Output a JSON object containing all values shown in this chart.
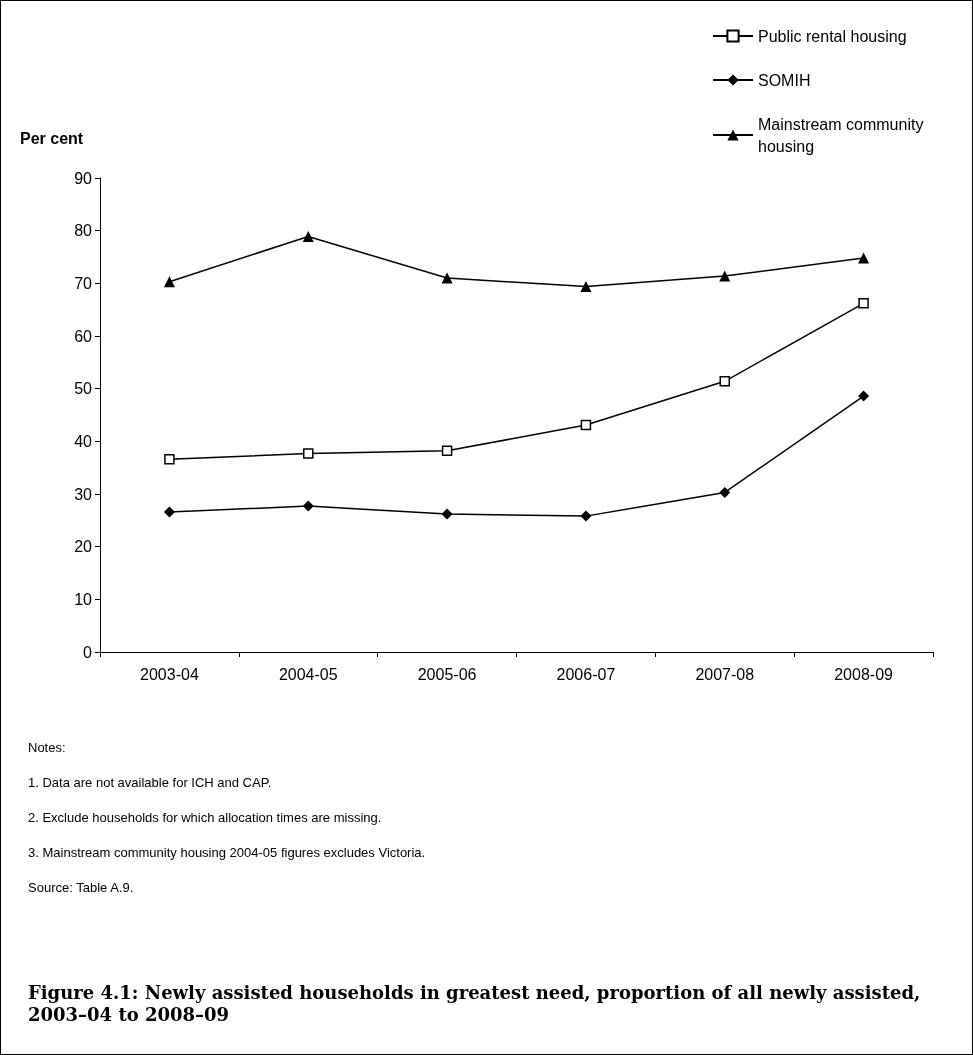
{
  "chart_data": {
    "type": "line",
    "title": "Figure 4.1: Newly assisted households in greatest need, proportion of all newly assisted, 2003–04 to 2008–09",
    "ylabel": "Per cent",
    "categories": [
      "2003-04",
      "2004-05",
      "2005-06",
      "2006-07",
      "2007-08",
      "2008-09"
    ],
    "series": [
      {
        "name": "Public rental housing",
        "color": "#000000",
        "marker": "square",
        "values": [
          36.6,
          37.7,
          38.2,
          43.1,
          51.4,
          66.2
        ]
      },
      {
        "name": "SOMIH",
        "color": "#000000",
        "marker": "diamond",
        "values": [
          26.6,
          27.7,
          26.2,
          25.8,
          30.3,
          48.6
        ]
      },
      {
        "name": "Mainstream community housing",
        "color": "#000000",
        "marker": "triangle",
        "values": [
          70.3,
          78.9,
          71.0,
          69.4,
          71.4,
          74.8
        ]
      }
    ],
    "ylim": [
      0,
      90
    ],
    "yticks": [
      0,
      10,
      20,
      30,
      40,
      50,
      60,
      70,
      80,
      90
    ],
    "grid": false,
    "legend": "top right",
    "line_style": "solid",
    "annotations": [
      "Notes:",
      "1. Data are not available for ICH and CAP.",
      "2. Exclude households for which allocation times are missing.",
      "3. Mainstream community housing 2004-05 figures excludes Victoria.",
      "Source: Table A.9."
    ]
  }
}
